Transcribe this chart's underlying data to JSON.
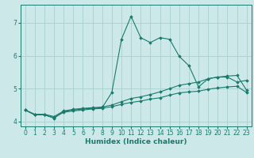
{
  "xlabel": "Humidex (Indice chaleur)",
  "ylabel": "",
  "x": [
    0,
    1,
    2,
    3,
    4,
    5,
    6,
    7,
    8,
    9,
    10,
    11,
    12,
    13,
    14,
    15,
    16,
    17,
    18,
    19,
    20,
    21,
    22,
    23
  ],
  "line1": [
    4.35,
    4.2,
    4.2,
    4.1,
    4.3,
    4.35,
    4.38,
    4.4,
    4.42,
    4.88,
    6.5,
    7.2,
    6.55,
    6.4,
    6.55,
    6.5,
    5.98,
    5.7,
    5.05,
    5.3,
    5.35,
    5.35,
    5.2,
    5.25
  ],
  "line2": [
    4.35,
    4.22,
    4.22,
    4.15,
    4.32,
    4.37,
    4.4,
    4.42,
    4.44,
    4.5,
    4.6,
    4.7,
    4.75,
    4.82,
    4.9,
    5.0,
    5.1,
    5.15,
    5.2,
    5.3,
    5.35,
    5.38,
    5.4,
    4.95
  ],
  "line3": [
    4.35,
    4.2,
    4.2,
    4.12,
    4.28,
    4.32,
    4.35,
    4.38,
    4.4,
    4.45,
    4.52,
    4.58,
    4.62,
    4.68,
    4.72,
    4.8,
    4.87,
    4.9,
    4.92,
    4.98,
    5.02,
    5.05,
    5.07,
    4.88
  ],
  "line_color": "#1a7a6e",
  "bg_color": "#cce8e8",
  "grid_color": "#aacfcf",
  "xlim": [
    -0.5,
    23.5
  ],
  "ylim": [
    3.85,
    7.55
  ],
  "yticks": [
    4,
    5,
    6,
    7
  ],
  "xticks": [
    0,
    1,
    2,
    3,
    4,
    5,
    6,
    7,
    8,
    9,
    10,
    11,
    12,
    13,
    14,
    15,
    16,
    17,
    18,
    19,
    20,
    21,
    22,
    23
  ],
  "marker": "D",
  "marker_size": 1.8,
  "linewidth": 0.8,
  "tick_fontsize": 5.5,
  "xlabel_fontsize": 6.5
}
